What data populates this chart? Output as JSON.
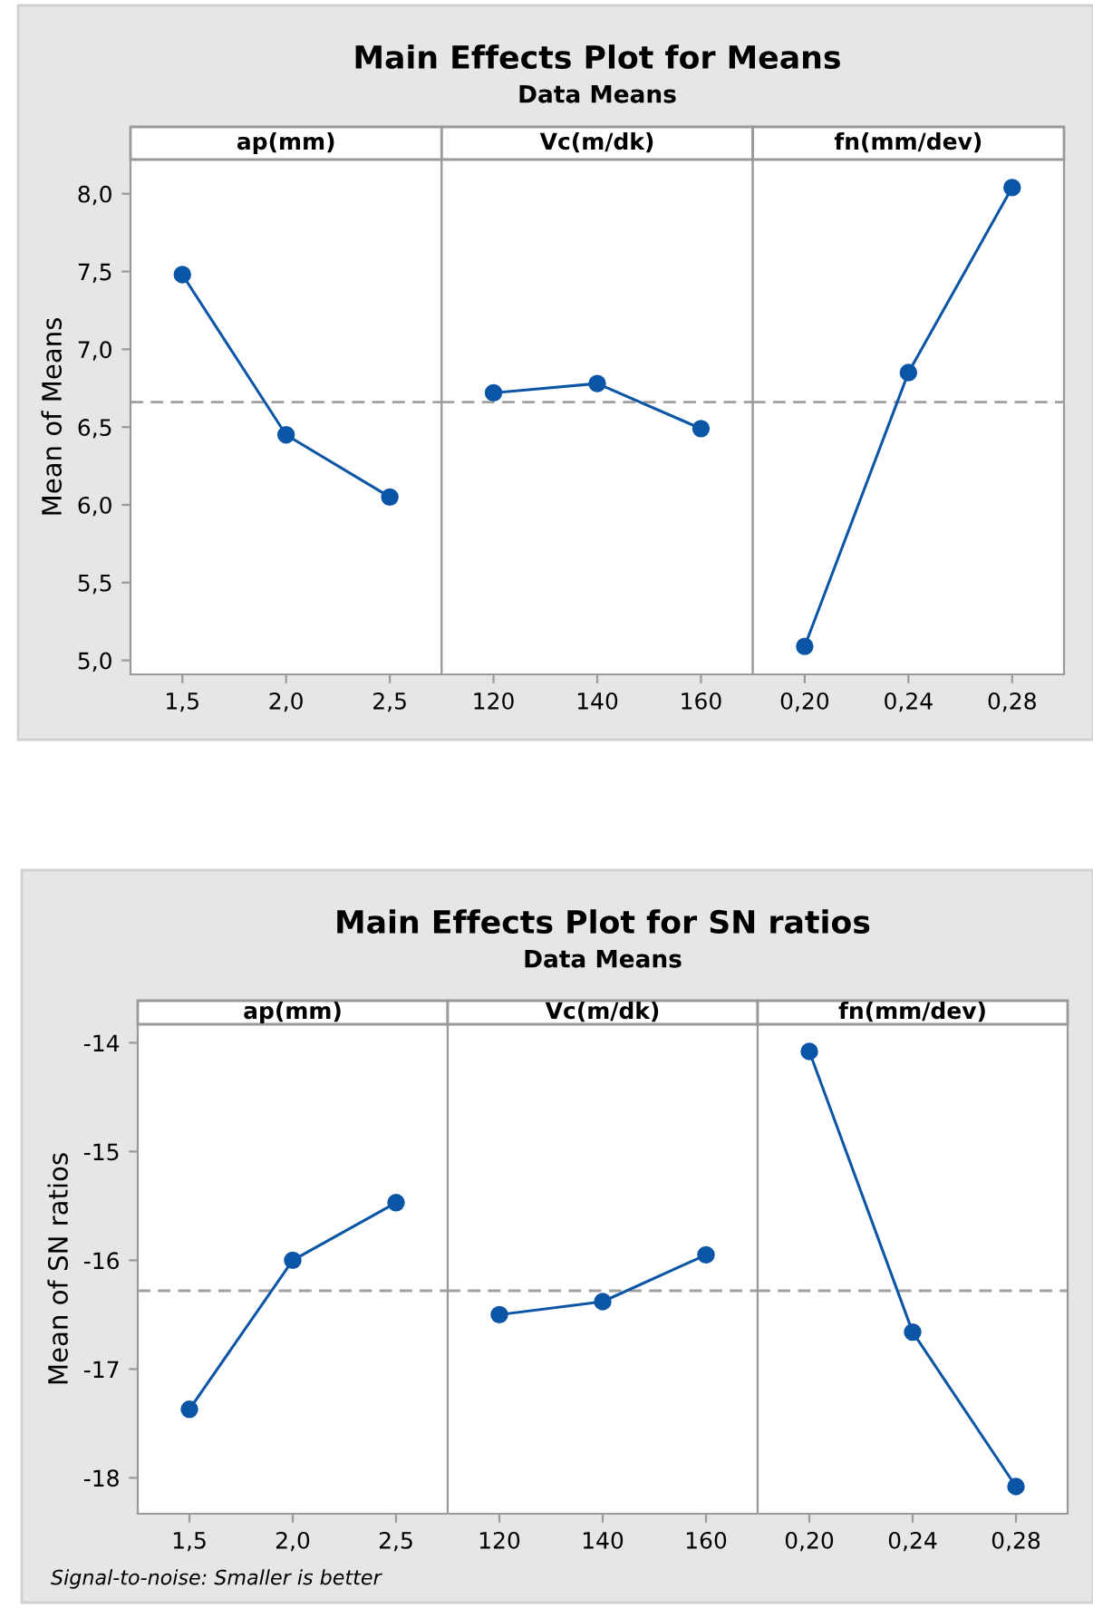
{
  "chart_data": [
    {
      "type": "line",
      "xlabel": "ap(mm)",
      "ylabel": "Mean of Means",
      "categories": [
        "1,5",
        "2,0",
        "2,5"
      ],
      "values": [
        7.48,
        6.45,
        6.05
      ],
      "color": "#0b55a6",
      "marker": "circle",
      "ylim": [
        4.91,
        8.22
      ],
      "yticks": [
        {
          "value": 5,
          "label": "5,0"
        },
        {
          "value": 5.5,
          "label": "5,5"
        },
        {
          "value": 6,
          "label": "6,0"
        },
        {
          "value": 6.5,
          "label": "6,5"
        },
        {
          "value": 7,
          "label": "7,0"
        },
        {
          "value": 7.5,
          "label": "7,5"
        },
        {
          "value": 8,
          "label": "8,0"
        }
      ],
      "ref_lines": [
        {
          "axis": "y",
          "value": 6.66,
          "color": "#a0a0a0",
          "line_style": "dashed"
        }
      ]
    },
    {
      "type": "line",
      "title": "Main Effects Plot for Means",
      "subtitle": "Data Means",
      "xlabel": "Vc(m/dk)",
      "categories": [
        "120",
        "140",
        "160"
      ],
      "values": [
        6.72,
        6.78,
        6.49
      ],
      "color": "#0b55a6",
      "marker": "circle",
      "ylim": [
        4.91,
        8.22
      ],
      "tick_labels": "x",
      "ref_lines": [
        {
          "axis": "y",
          "value": 6.66,
          "color": "#a0a0a0",
          "line_style": "dashed"
        }
      ]
    },
    {
      "type": "line",
      "xlabel": "fn(mm/dev)",
      "categories": [
        "0,20",
        "0,24",
        "0,28"
      ],
      "values": [
        5.09,
        6.85,
        8.04
      ],
      "color": "#0b55a6",
      "marker": "circle",
      "ylim": [
        4.91,
        8.22
      ],
      "tick_labels": "x",
      "ref_lines": [
        {
          "axis": "y",
          "value": 6.66,
          "color": "#a0a0a0",
          "line_style": "dashed"
        }
      ]
    },
    {
      "type": "line",
      "xlabel": "ap(mm)",
      "ylabel": "Mean of SN ratios",
      "categories": [
        "1,5",
        "2,0",
        "2,5"
      ],
      "values": [
        -17.37,
        -16.0,
        -15.47
      ],
      "color": "#0b55a6",
      "marker": "circle",
      "ylim": [
        -18.33,
        -13.83
      ],
      "yticks": [
        -18,
        -17,
        -16,
        -15,
        -14
      ],
      "ref_lines": [
        {
          "axis": "y",
          "value": -16.28,
          "color": "#a0a0a0",
          "line_style": "dashed"
        }
      ],
      "annotations": [
        "Signal-to-noise: Smaller is better"
      ]
    },
    {
      "type": "line",
      "title": "Main Effects Plot for SN ratios",
      "subtitle": "Data Means",
      "xlabel": "Vc(m/dk)",
      "categories": [
        "120",
        "140",
        "160"
      ],
      "values": [
        -16.5,
        -16.38,
        -15.95
      ],
      "color": "#0b55a6",
      "marker": "circle",
      "ylim": [
        -18.33,
        -13.83
      ],
      "tick_labels": "x",
      "ref_lines": [
        {
          "axis": "y",
          "value": -16.28,
          "color": "#a0a0a0",
          "line_style": "dashed"
        }
      ]
    },
    {
      "type": "line",
      "xlabel": "fn(mm/dev)",
      "categories": [
        "0,20",
        "0,24",
        "0,28"
      ],
      "values": [
        -14.08,
        -16.66,
        -18.08
      ],
      "color": "#0b55a6",
      "marker": "circle",
      "ylim": [
        -18.33,
        -13.83
      ],
      "tick_labels": "x",
      "ref_lines": [
        {
          "axis": "y",
          "value": -16.28,
          "color": "#a0a0a0",
          "line_style": "dashed"
        }
      ]
    }
  ]
}
